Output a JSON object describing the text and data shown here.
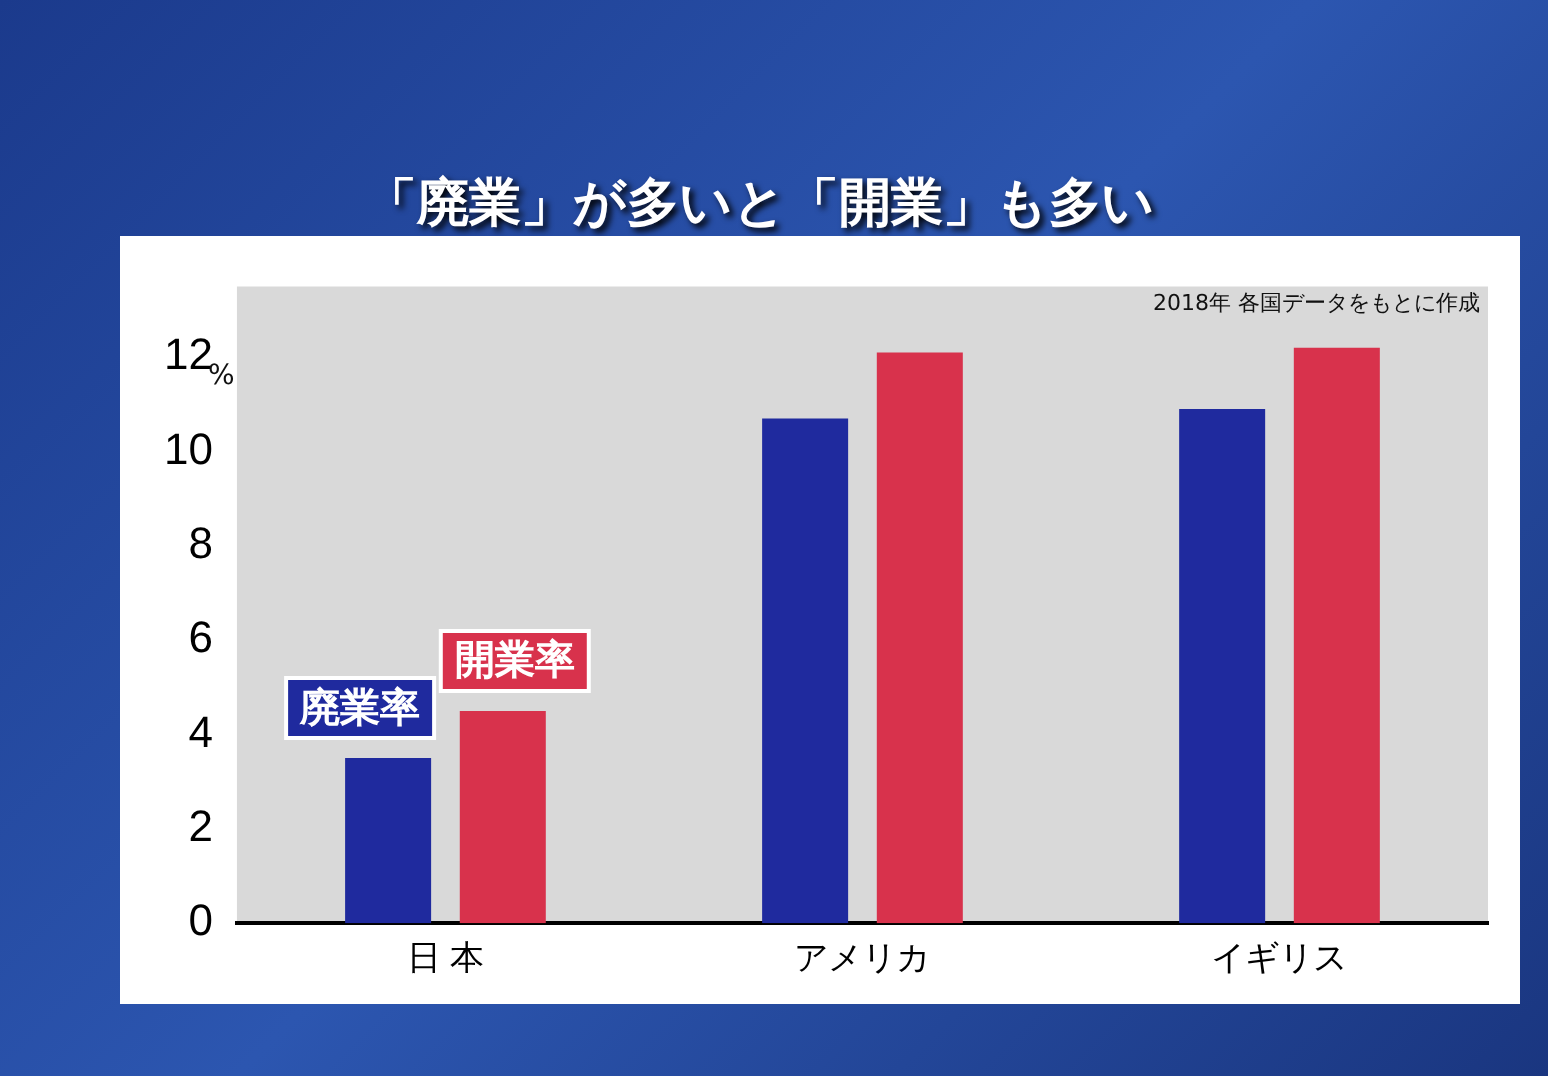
{
  "chart_data": {
    "type": "bar",
    "title": "「廃業」が多いと「開業」も多い",
    "categories": [
      "日 本",
      "アメリカ",
      "イギリス"
    ],
    "series": [
      {
        "name": "廃業率",
        "color": "#1f2a9e",
        "values": [
          3.5,
          10.7,
          10.9
        ]
      },
      {
        "name": "開業率",
        "color": "#d8324c",
        "values": [
          4.5,
          12.1,
          12.2
        ]
      }
    ],
    "ylabel": "%",
    "ylim": [
      0,
      13.5
    ],
    "yticks": [
      0,
      2,
      4,
      6,
      8,
      10,
      12
    ],
    "grid": false,
    "legend": false,
    "annotations": [
      "2018年 各国データをもとに作成"
    ]
  }
}
